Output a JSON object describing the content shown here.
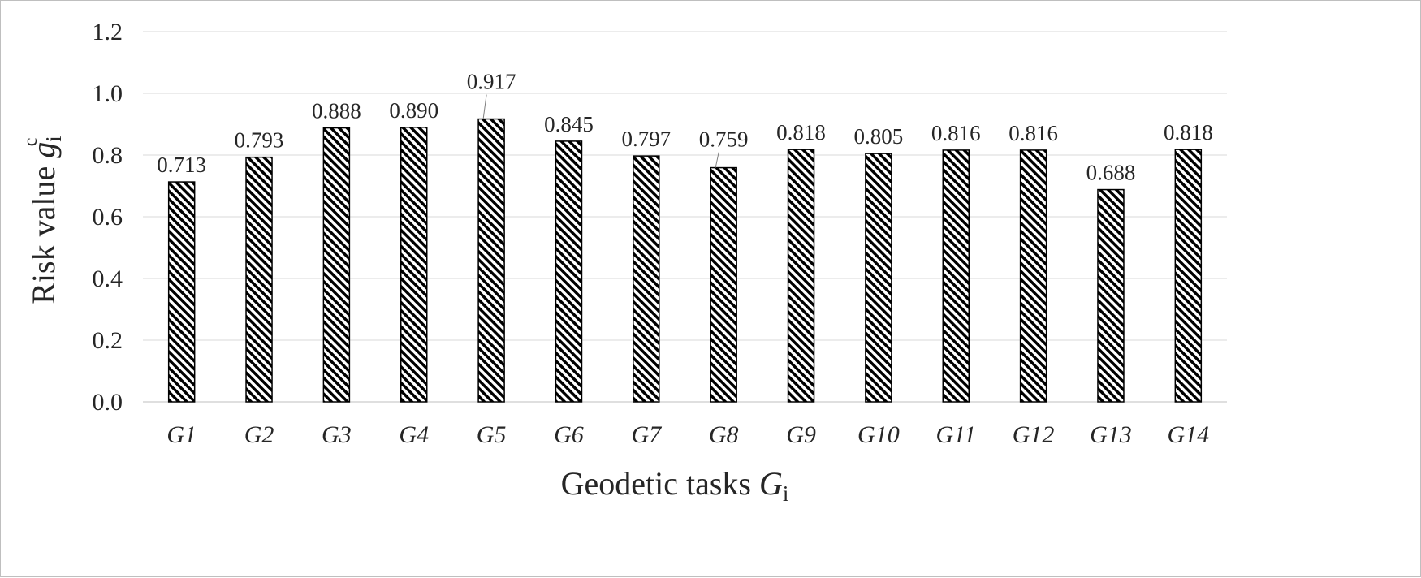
{
  "chart_data": {
    "type": "bar",
    "categories": [
      "G1",
      "G2",
      "G3",
      "G4",
      "G5",
      "G6",
      "G7",
      "G8",
      "G9",
      "G10",
      "G11",
      "G12",
      "G13",
      "G14"
    ],
    "values": [
      0.713,
      0.793,
      0.888,
      0.89,
      0.917,
      0.845,
      0.797,
      0.759,
      0.818,
      0.805,
      0.816,
      0.816,
      0.688,
      0.818
    ],
    "data_labels": [
      "0.713",
      "0.793",
      "0.888",
      "0.890",
      "0.917",
      "0.845",
      "0.797",
      "0.759",
      "0.818",
      "0.805",
      "0.816",
      "0.816",
      "0.688",
      "0.818"
    ],
    "y_ticks": [
      "0.0",
      "0.2",
      "0.4",
      "0.6",
      "0.8",
      "1.0",
      "1.2"
    ],
    "ylim": [
      0,
      1.2
    ],
    "grid": true,
    "bar_pattern": "diagonal-hatch",
    "bar_color": "#000000",
    "xlabel": {
      "text": "Geodetic tasks ",
      "symbol": "G",
      "sub": "i"
    },
    "ylabel": {
      "text": "Risk value ",
      "symbol": "g",
      "sub": "i",
      "sup": "c"
    }
  }
}
